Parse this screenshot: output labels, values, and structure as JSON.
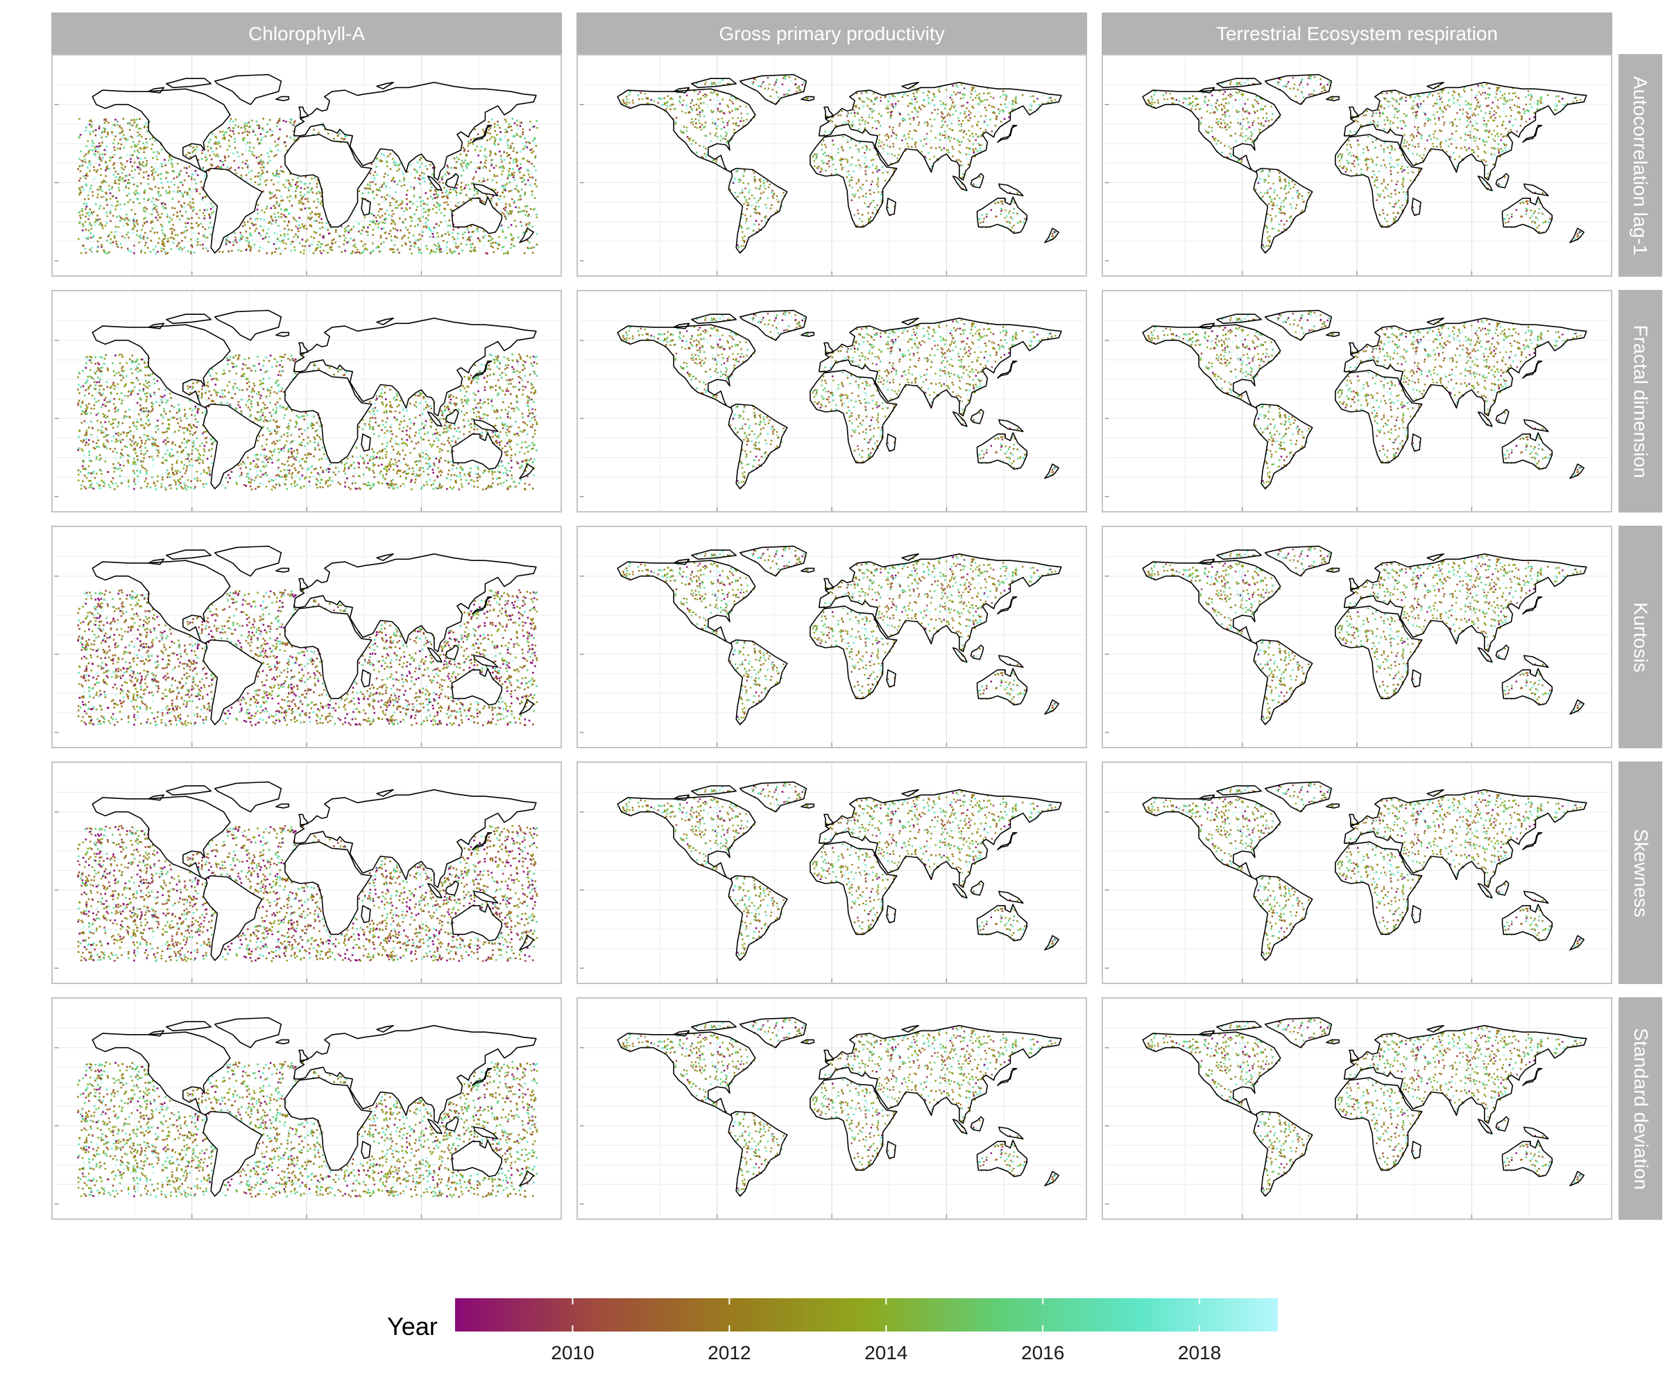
{
  "columns": [
    "Chlorophyll-A",
    "Gross primary productivity",
    "Terrestrial Ecosystem respiration"
  ],
  "rows": [
    "Autocorrelation lag-1",
    "Fractal dimension",
    "Kurtosis",
    "Skewness",
    "Standard deviation"
  ],
  "legend": {
    "title": "Year",
    "min": 2008.5,
    "max": 2019.0,
    "ticks": [
      "2010",
      "2012",
      "2014",
      "2016",
      "2018"
    ],
    "tick_values": [
      2010,
      2012,
      2014,
      2016,
      2018
    ],
    "colors": [
      "#8b0a77",
      "#a04a3e",
      "#9a7a1e",
      "#8fa81e",
      "#5fcf7a",
      "#5fe6c9",
      "#b5f7fb"
    ]
  },
  "colors": {
    "strip": "#b3b3b3",
    "strip_text": "#ffffff",
    "panel_border": "#c4c4c4",
    "grid": "#e6e6e6",
    "coastline": "#000000"
  }
}
